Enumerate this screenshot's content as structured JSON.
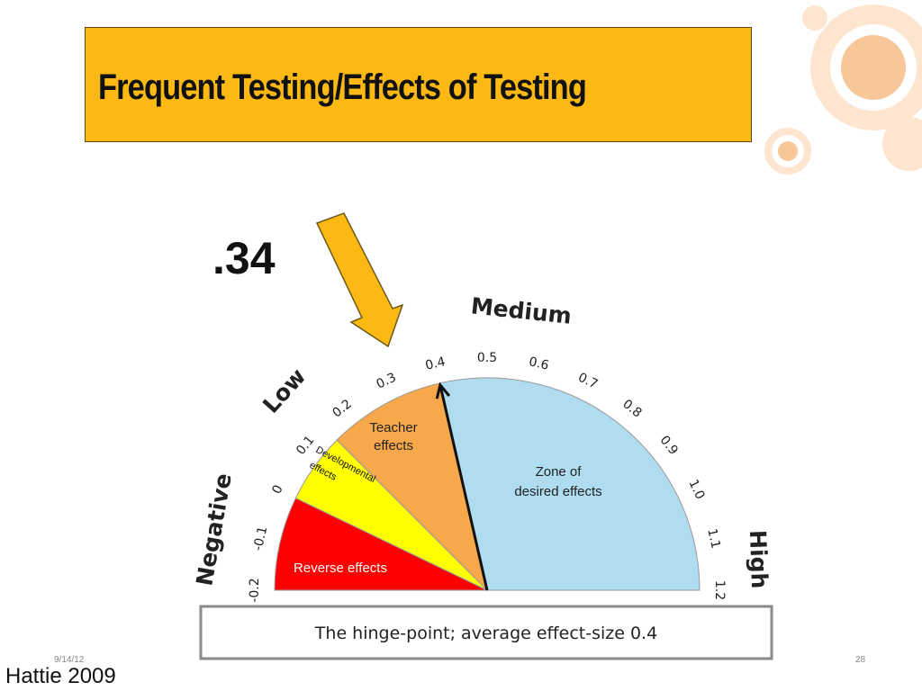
{
  "slide": {
    "title": "Frequent Testing/Effects of Testing",
    "effect_value": ".34",
    "date": "9/14/12",
    "page_number": "28",
    "citation": "Hattie 2009"
  },
  "gauge": {
    "scale_min": -0.2,
    "scale_max": 1.2,
    "indicated_value": 0.34,
    "ticks": [
      "-0.2",
      "-0.1",
      "0",
      "0.1",
      "0.2",
      "0.3",
      "0.4",
      "0.5",
      "0.6",
      "0.7",
      "0.8",
      "0.9",
      "1.0",
      "1.1",
      "1.2"
    ],
    "category_labels": {
      "negative": "Negative",
      "low": "Low",
      "medium": "Medium",
      "high": "High"
    },
    "zones": [
      {
        "name": "reverse",
        "label": "Reverse effects",
        "from": -0.2,
        "to": 0.0,
        "color": "#ff0000"
      },
      {
        "name": "developmental",
        "label_line1": "Developmental",
        "label_line2": "effects",
        "from": 0.0,
        "to": 0.15,
        "color": "#ffff00"
      },
      {
        "name": "teacher",
        "label_line1": "Teacher",
        "label_line2": "effects",
        "from": 0.15,
        "to": 0.4,
        "color": "#f7a84a"
      },
      {
        "name": "desired",
        "label_line1": "Zone of",
        "label_line2": "desired effects",
        "from": 0.4,
        "to": 1.2,
        "color": "#b0dcf0"
      }
    ],
    "hinge_caption": "The hinge-point; average effect-size 0.4"
  },
  "colors": {
    "title_background": "#fcb813",
    "arrow_fill": "#fcb813",
    "decor_circles": "#f7c79a"
  }
}
